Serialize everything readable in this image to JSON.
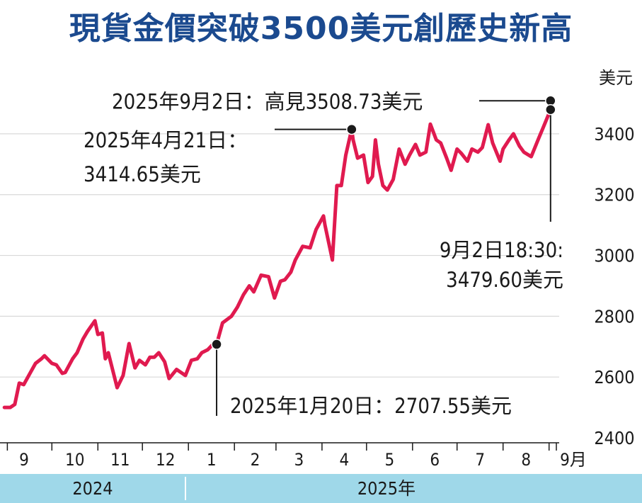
{
  "title": "現貨金價突破3500美元創歷史新高",
  "chart_data": {
    "type": "line",
    "title": "現貨金價突破3500美元創歷史新高",
    "ylabel": "美元",
    "ylim": [
      2400,
      3550
    ],
    "yticks": [
      2400,
      2600,
      2800,
      3000,
      3200,
      3400
    ],
    "xlabel": "",
    "month_ticks": [
      "9",
      "10",
      "11",
      "12",
      "1",
      "2",
      "3",
      "4",
      "5",
      "6",
      "7",
      "8",
      "9月"
    ],
    "year_labels": [
      "2024",
      "2025年"
    ],
    "series": [
      {
        "name": "",
        "color": "#e01a4f",
        "x": [
          "2024-08-30",
          "2024-09-03",
          "2024-09-06",
          "2024-09-09",
          "2024-09-12",
          "2024-09-16",
          "2024-09-20",
          "2024-09-24",
          "2024-09-26",
          "2024-10-01",
          "2024-10-04",
          "2024-10-08",
          "2024-10-10",
          "2024-10-15",
          "2024-10-18",
          "2024-10-22",
          "2024-10-25",
          "2024-10-30",
          "2024-11-01",
          "2024-11-04",
          "2024-11-06",
          "2024-11-08",
          "2024-11-14",
          "2024-11-18",
          "2024-11-22",
          "2024-11-26",
          "2024-11-29",
          "2024-12-03",
          "2024-12-06",
          "2024-12-09",
          "2024-12-12",
          "2024-12-16",
          "2024-12-19",
          "2024-12-24",
          "2024-12-30",
          "2025-01-03",
          "2025-01-07",
          "2025-01-10",
          "2025-01-14",
          "2025-01-17",
          "2025-01-20",
          "2025-01-24",
          "2025-01-30",
          "2025-02-03",
          "2025-02-07",
          "2025-02-11",
          "2025-02-14",
          "2025-02-19",
          "2025-02-24",
          "2025-02-28",
          "2025-03-04",
          "2025-03-07",
          "2025-03-11",
          "2025-03-14",
          "2025-03-19",
          "2025-03-24",
          "2025-03-28",
          "2025-04-02",
          "2025-04-03",
          "2025-04-08",
          "2025-04-11",
          "2025-04-14",
          "2025-04-17",
          "2025-04-21",
          "2025-04-22",
          "2025-04-25",
          "2025-04-29",
          "2025-05-02",
          "2025-05-05",
          "2025-05-07",
          "2025-05-09",
          "2025-05-12",
          "2025-05-15",
          "2025-05-19",
          "2025-05-23",
          "2025-05-27",
          "2025-05-30",
          "2025-06-03",
          "2025-06-06",
          "2025-06-10",
          "2025-06-13",
          "2025-06-17",
          "2025-06-20",
          "2025-06-24",
          "2025-06-27",
          "2025-07-01",
          "2025-07-04",
          "2025-07-08",
          "2025-07-11",
          "2025-07-15",
          "2025-07-18",
          "2025-07-22",
          "2025-07-25",
          "2025-07-30",
          "2025-08-01",
          "2025-08-05",
          "2025-08-08",
          "2025-08-12",
          "2025-08-15",
          "2025-08-20",
          "2025-08-25",
          "2025-08-28",
          "2025-09-02"
        ],
        "values": [
          2500,
          2500,
          2510,
          2580,
          2575,
          2610,
          2645,
          2660,
          2670,
          2645,
          2640,
          2612,
          2615,
          2660,
          2680,
          2725,
          2750,
          2785,
          2740,
          2745,
          2660,
          2680,
          2565,
          2605,
          2710,
          2630,
          2655,
          2640,
          2665,
          2665,
          2680,
          2650,
          2595,
          2625,
          2605,
          2655,
          2660,
          2680,
          2690,
          2705,
          2707.55,
          2778,
          2800,
          2830,
          2870,
          2900,
          2880,
          2935,
          2930,
          2860,
          2915,
          2920,
          2945,
          2985,
          3030,
          3025,
          3085,
          3130,
          3100,
          2985,
          3230,
          3230,
          3330,
          3414.65,
          3380,
          3320,
          3330,
          3240,
          3260,
          3380,
          3300,
          3230,
          3215,
          3250,
          3350,
          3300,
          3330,
          3365,
          3330,
          3340,
          3432,
          3380,
          3370,
          3320,
          3280,
          3350,
          3335,
          3310,
          3350,
          3340,
          3355,
          3430,
          3370,
          3310,
          3350,
          3380,
          3400,
          3360,
          3340,
          3325,
          3385,
          3420,
          3479.6
        ]
      }
    ],
    "annotations": [
      {
        "date": "2025-09-02",
        "value": 3508.73,
        "text": "2025年9月2日：高見3508.73美元"
      },
      {
        "date": "2025-04-21",
        "value": 3414.65,
        "text_line1": "2025年4月21日：",
        "text_line2": "3414.65美元"
      },
      {
        "date": "2025-09-02",
        "value": 3479.6,
        "text_line1": "9月2日18:30:",
        "text_line2": "3479.60美元"
      },
      {
        "date": "2025-01-20",
        "value": 2707.55,
        "text": "2025年1月20日：2707.55美元"
      }
    ],
    "grid": true
  }
}
